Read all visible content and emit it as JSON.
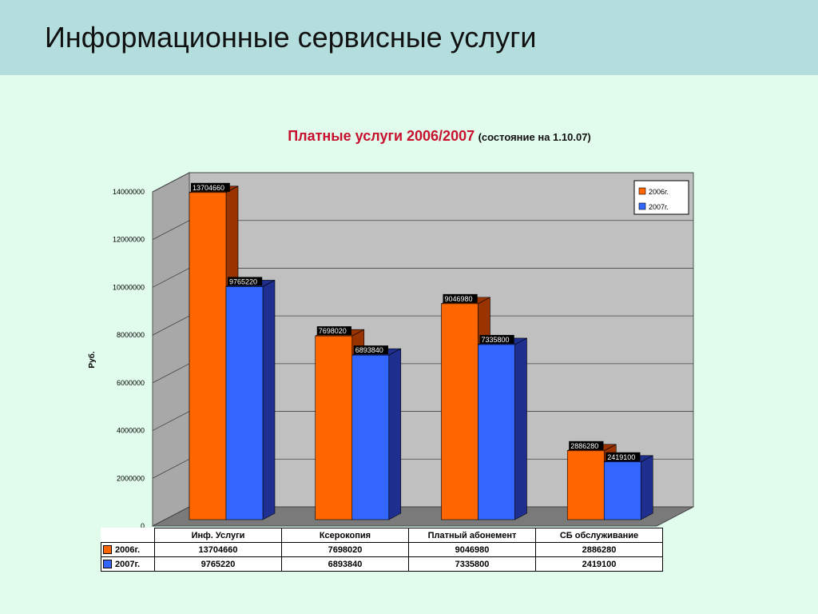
{
  "slide": {
    "title": "Информационные сервисные услуги"
  },
  "chart_title": {
    "main": "Платные услуги 2006/2007",
    "sub": "(состояние на 1.10.07)"
  },
  "chart_data": {
    "type": "bar",
    "categories": [
      "Инф. Услуги",
      "Ксерокопия",
      "Платный абонемент",
      "СБ обслуживание"
    ],
    "series": [
      {
        "name": "2006г.",
        "values": [
          13704660,
          7698020,
          9046980,
          2886280
        ],
        "color": "#ff6600",
        "side_color": "#993300"
      },
      {
        "name": "2007г.",
        "values": [
          9765220,
          6893840,
          7335800,
          2419100
        ],
        "color": "#3366ff",
        "side_color": "#1f2f8f"
      }
    ],
    "ylabel": "Руб.",
    "ylim": [
      0,
      14000000
    ],
    "yticks": [
      "0",
      "2000000",
      "4000000",
      "6000000",
      "8000000",
      "10000000",
      "12000000",
      "14000000"
    ],
    "grid": true,
    "legend": "top-right",
    "data_labels": true,
    "data_table": true
  }
}
